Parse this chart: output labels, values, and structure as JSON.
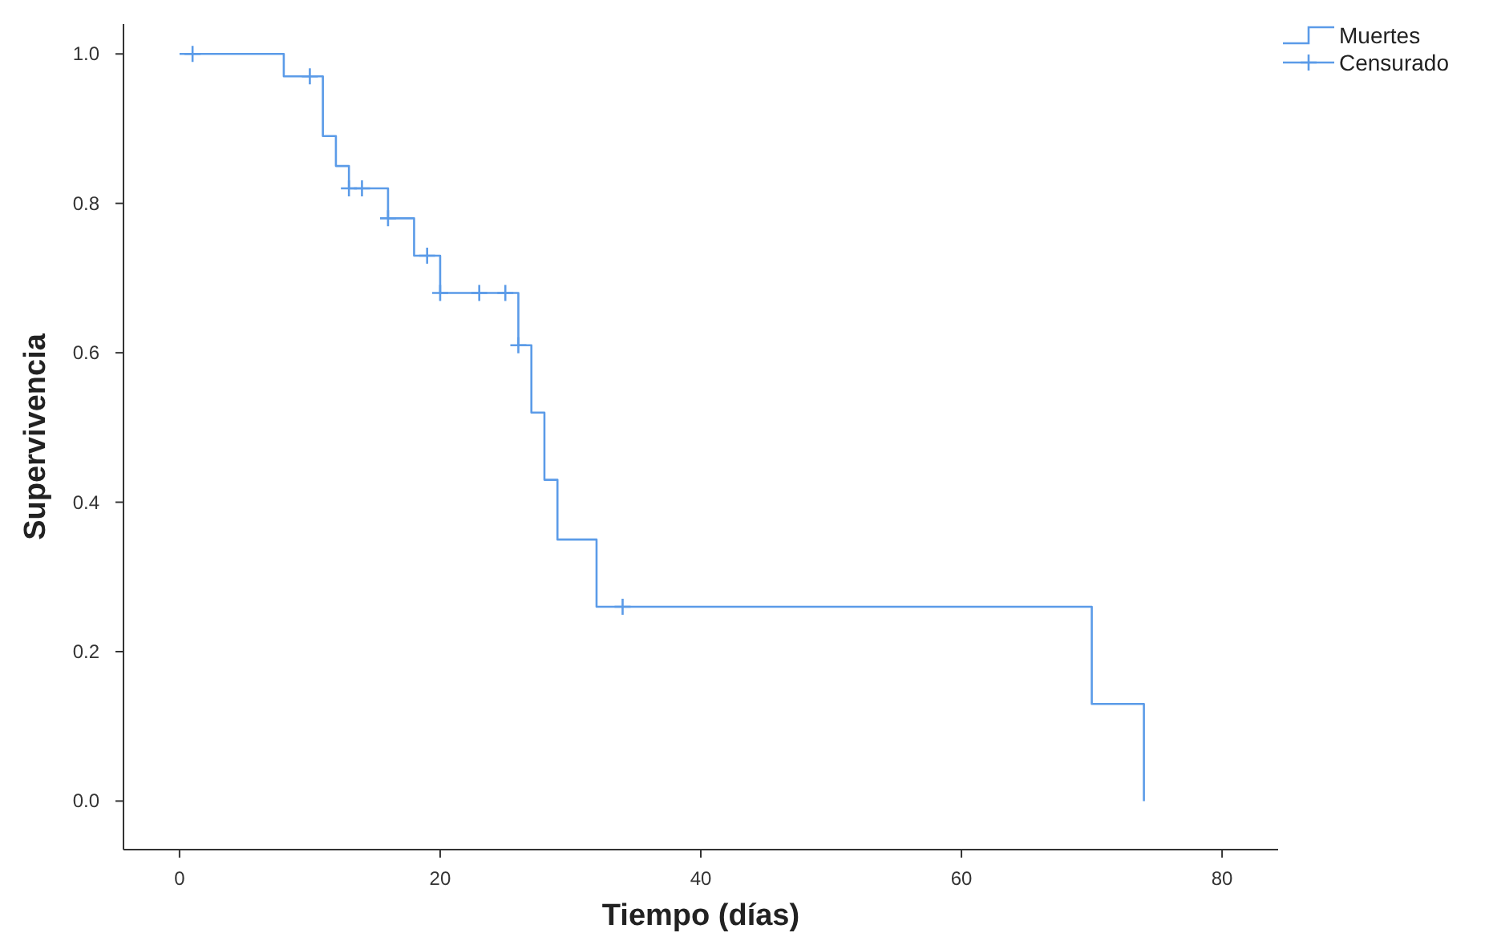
{
  "chart_data": {
    "type": "step",
    "xlabel": "Tiempo (días)",
    "ylabel": "Supervivencia",
    "xlim": [
      -4.3,
      84.3
    ],
    "xticks": [
      0,
      20,
      40,
      60,
      80
    ],
    "ylim": [
      -0.065,
      1.04
    ],
    "yticks": [
      {
        "value": 0,
        "label": "0.0"
      },
      {
        "value": 0.2,
        "label": "0.2"
      },
      {
        "value": 0.4,
        "label": "0.4"
      },
      {
        "value": 0.6,
        "label": "0.6"
      },
      {
        "value": 0.8,
        "label": "0.8"
      },
      {
        "value": 1,
        "label": "1.0"
      }
    ],
    "grid": false,
    "legend": "top right",
    "series": [
      {
        "name": "Muertes",
        "color": "#5b9be8",
        "x": [
          0,
          8,
          11,
          12,
          13,
          16,
          18,
          20,
          26,
          27,
          28,
          29,
          32,
          70,
          74
        ],
        "values": [
          1,
          0.97,
          0.89,
          0.85,
          0.82,
          0.78,
          0.73,
          0.68,
          0.61,
          0.52,
          0.43,
          0.35,
          0.26,
          0.13,
          0
        ]
      },
      {
        "name": "Censurado",
        "type": "scatter",
        "marker": "cross",
        "color": "#5b9be8",
        "x": [
          1,
          10,
          13,
          14,
          16,
          19,
          20,
          23,
          25,
          26,
          34
        ],
        "values": [
          1,
          0.97,
          0.82,
          0.82,
          0.78,
          0.73,
          0.68,
          0.68,
          0.68,
          0.61,
          0.26
        ]
      }
    ]
  }
}
